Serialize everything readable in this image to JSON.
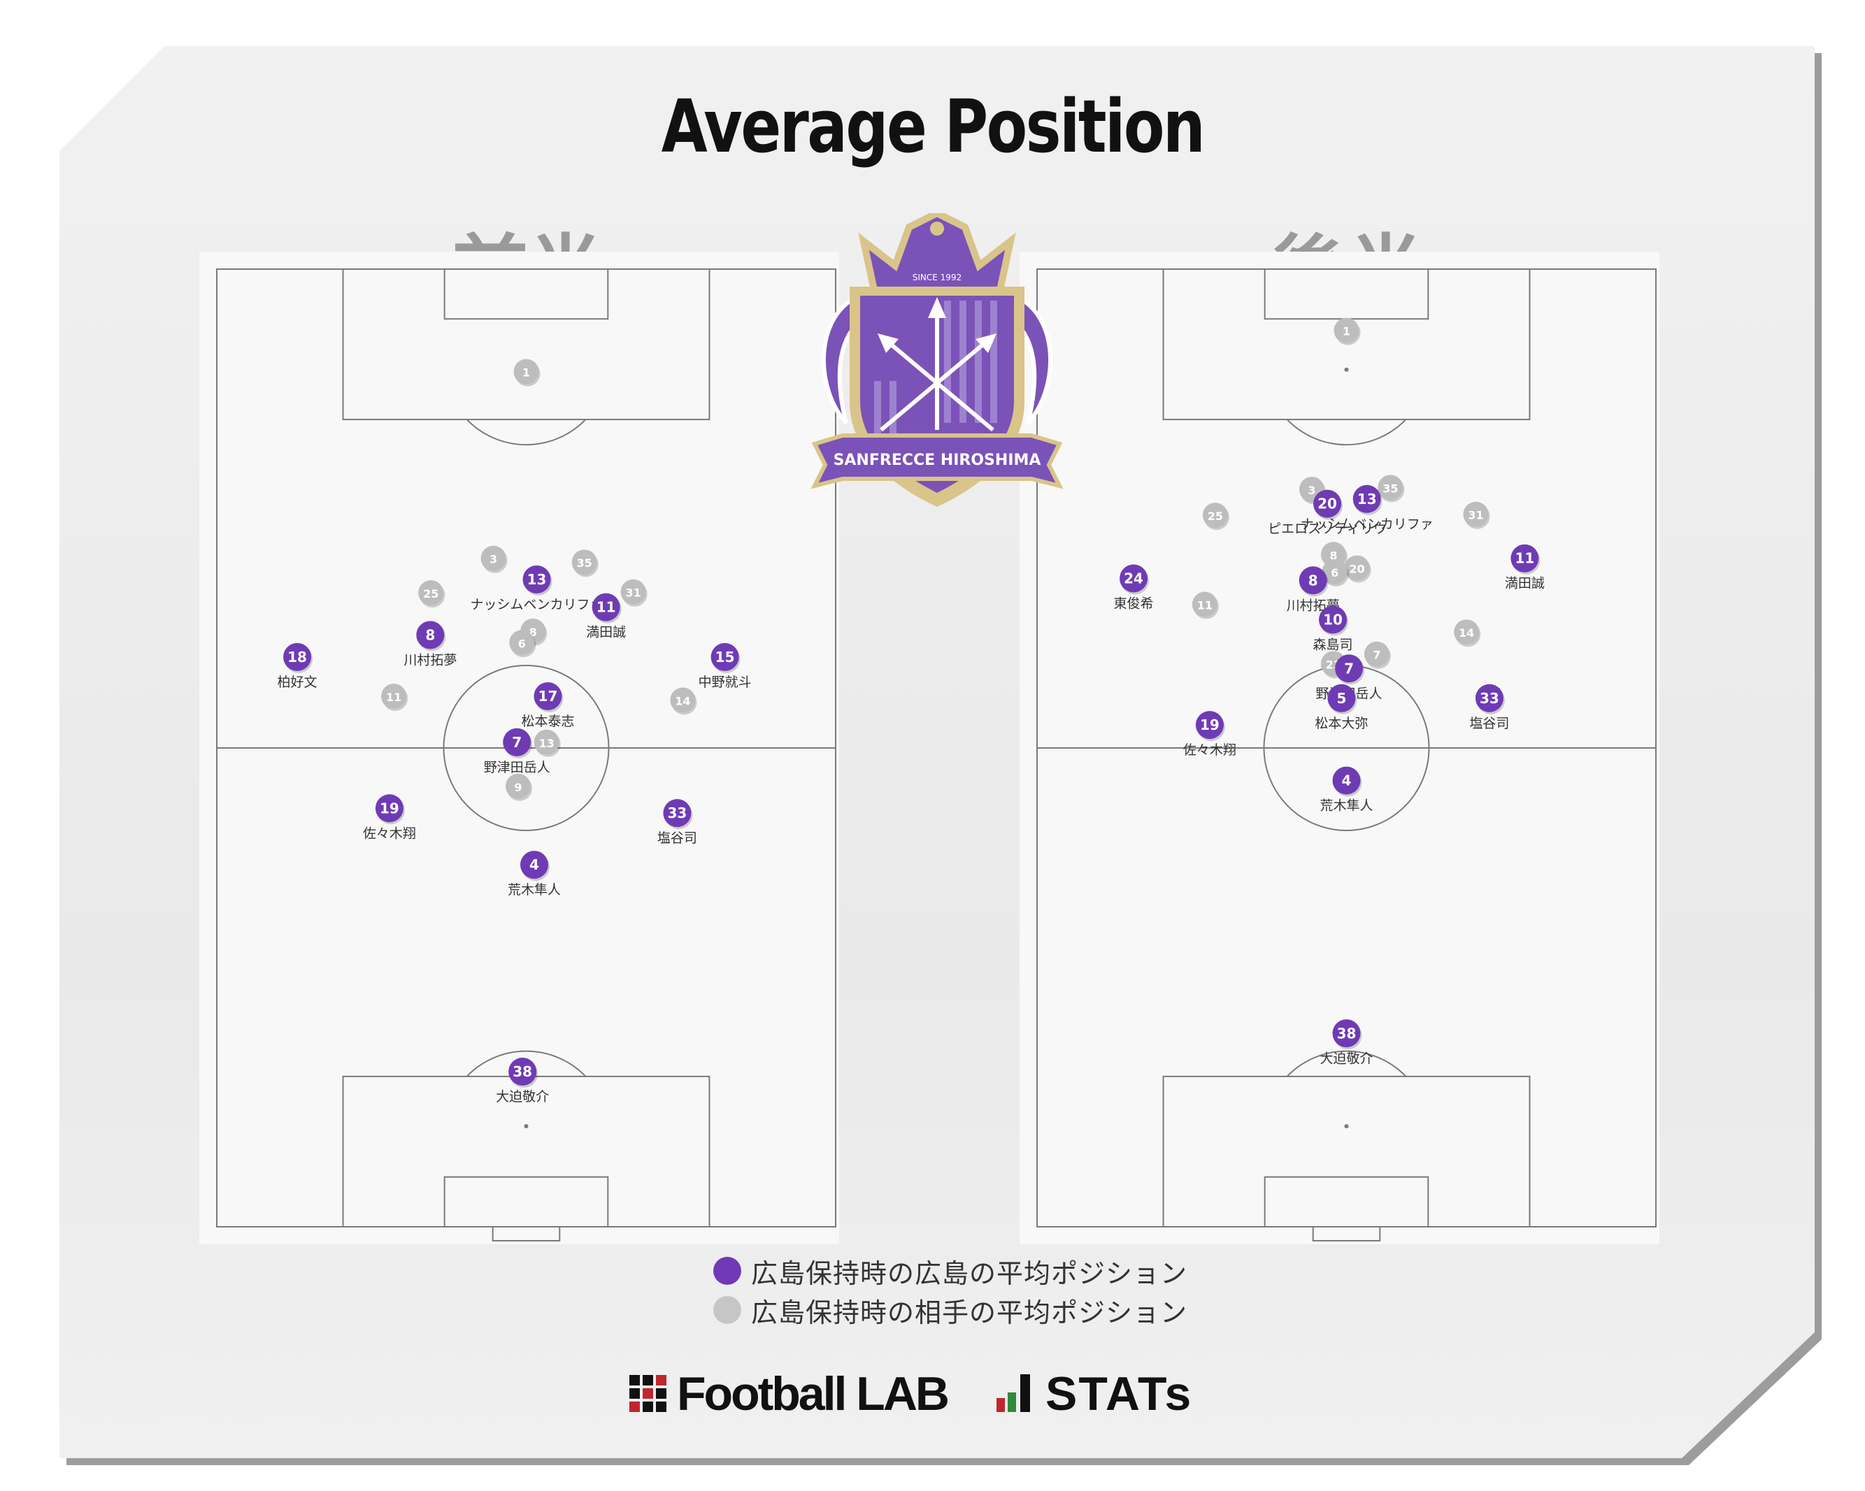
{
  "title": "Average Position",
  "halves": [
    {
      "title": "前半"
    },
    {
      "title": "後半"
    }
  ],
  "emblem": {
    "text": "SANFRECCE  HIROSHIMA",
    "since": "SINCE 1992"
  },
  "legend": [
    {
      "label": "広島保持時の広島の平均ポジション",
      "color": "#7139b5"
    },
    {
      "label": "広島保持時の相手の平均ポジション",
      "color": "#c6c6c6"
    }
  ],
  "footer": {
    "brand1": "Football LAB",
    "brand2": "STATs"
  },
  "colors": {
    "hiroshima": "#6f3bb4",
    "opponent": "#bdbdbd",
    "pitch_line": "#7a7a7a"
  },
  "chart_data": [
    {
      "type": "scatter",
      "title": "前半",
      "x_unit": "pitch width (0 = left touchline, 100 = right touchline)",
      "y_unit": "pitch length (0 = top goal line, 100 = bottom goal line)",
      "xlim": [
        0,
        100
      ],
      "ylim": [
        0,
        100
      ],
      "series": [
        {
          "team": "hiroshima",
          "points": [
            {
              "num": "18",
              "name": "柏好文",
              "x": 13.0,
              "y": 40.5
            },
            {
              "num": "8",
              "name": "川村拓夢",
              "x": 34.5,
              "y": 38.2
            },
            {
              "num": "13",
              "name": "ナッシムベンカリファ",
              "x": 51.7,
              "y": 32.4
            },
            {
              "num": "11",
              "name": "満田誠",
              "x": 62.9,
              "y": 35.3
            },
            {
              "num": "15",
              "name": "中野就斗",
              "x": 82.1,
              "y": 40.5
            },
            {
              "num": "17",
              "name": "松本泰志",
              "x": 53.5,
              "y": 44.6
            },
            {
              "num": "7",
              "name": "野津田岳人",
              "x": 48.5,
              "y": 49.4
            },
            {
              "num": "19",
              "name": "佐々木翔",
              "x": 27.9,
              "y": 56.3
            },
            {
              "num": "33",
              "name": "塩谷司",
              "x": 74.4,
              "y": 56.8
            },
            {
              "num": "4",
              "name": "荒木隼人",
              "x": 51.3,
              "y": 62.2
            },
            {
              "num": "38",
              "name": "大迫敬介",
              "x": 49.4,
              "y": 83.8
            }
          ]
        },
        {
          "team": "opponent",
          "points": [
            {
              "num": "1",
              "x": 50.0,
              "y": 10.7
            },
            {
              "num": "3",
              "x": 44.7,
              "y": 30.2
            },
            {
              "num": "35",
              "x": 59.4,
              "y": 30.6
            },
            {
              "num": "25",
              "x": 34.6,
              "y": 33.8
            },
            {
              "num": "31",
              "x": 67.3,
              "y": 33.7
            },
            {
              "num": "8",
              "x": 51.1,
              "y": 37.8
            },
            {
              "num": "6",
              "x": 49.3,
              "y": 39.0
            },
            {
              "num": "11",
              "x": 28.6,
              "y": 44.6
            },
            {
              "num": "14",
              "x": 75.3,
              "y": 45.0
            },
            {
              "num": "13",
              "x": 53.3,
              "y": 49.4
            },
            {
              "num": "9",
              "x": 48.7,
              "y": 54.0
            }
          ]
        }
      ]
    },
    {
      "type": "scatter",
      "title": "後半",
      "x_unit": "pitch width (0 = left touchline, 100 = right touchline)",
      "y_unit": "pitch length (0 = top goal line, 100 = bottom goal line)",
      "xlim": [
        0,
        100
      ],
      "ylim": [
        0,
        100
      ],
      "series": [
        {
          "team": "hiroshima",
          "points": [
            {
              "num": "20",
              "name": "ピエロスソティリウ",
              "x": 46.9,
              "y": 24.5
            },
            {
              "num": "13",
              "name": "ナッシムベンカリファ",
              "x": 53.3,
              "y": 24.0
            },
            {
              "num": "24",
              "name": "東俊希",
              "x": 15.6,
              "y": 32.3
            },
            {
              "num": "8",
              "name": "川村拓夢",
              "x": 44.6,
              "y": 32.5
            },
            {
              "num": "11",
              "name": "満田誠",
              "x": 78.8,
              "y": 30.2
            },
            {
              "num": "10",
              "name": "森島司",
              "x": 47.8,
              "y": 36.6
            },
            {
              "num": "7",
              "name": "野津田岳人",
              "x": 50.4,
              "y": 41.7
            },
            {
              "num": "5",
              "name": "松本大弥",
              "x": 49.2,
              "y": 44.8
            },
            {
              "num": "33",
              "name": "塩谷司",
              "x": 73.1,
              "y": 44.8
            },
            {
              "num": "19",
              "name": "佐々木翔",
              "x": 27.9,
              "y": 47.6
            },
            {
              "num": "4",
              "name": "荒木隼人",
              "x": 50.0,
              "y": 53.4
            },
            {
              "num": "38",
              "name": "大迫敬介",
              "x": 50.0,
              "y": 79.8
            }
          ]
        },
        {
          "team": "opponent",
          "points": [
            {
              "num": "1",
              "x": 50.0,
              "y": 6.4
            },
            {
              "num": "3",
              "x": 44.4,
              "y": 23.0
            },
            {
              "num": "35",
              "x": 57.1,
              "y": 22.8
            },
            {
              "num": "25",
              "x": 28.8,
              "y": 25.7
            },
            {
              "num": "31",
              "x": 70.9,
              "y": 25.6
            },
            {
              "num": "8",
              "x": 47.9,
              "y": 29.8
            },
            {
              "num": "20",
              "x": 51.7,
              "y": 31.2
            },
            {
              "num": "6",
              "x": 48.1,
              "y": 31.6
            },
            {
              "num": "11",
              "x": 27.1,
              "y": 35.0
            },
            {
              "num": "14",
              "x": 69.4,
              "y": 37.9
            },
            {
              "num": "7",
              "x": 54.9,
              "y": 40.2
            },
            {
              "num": "23",
              "x": 47.9,
              "y": 41.2
            }
          ]
        }
      ]
    }
  ]
}
